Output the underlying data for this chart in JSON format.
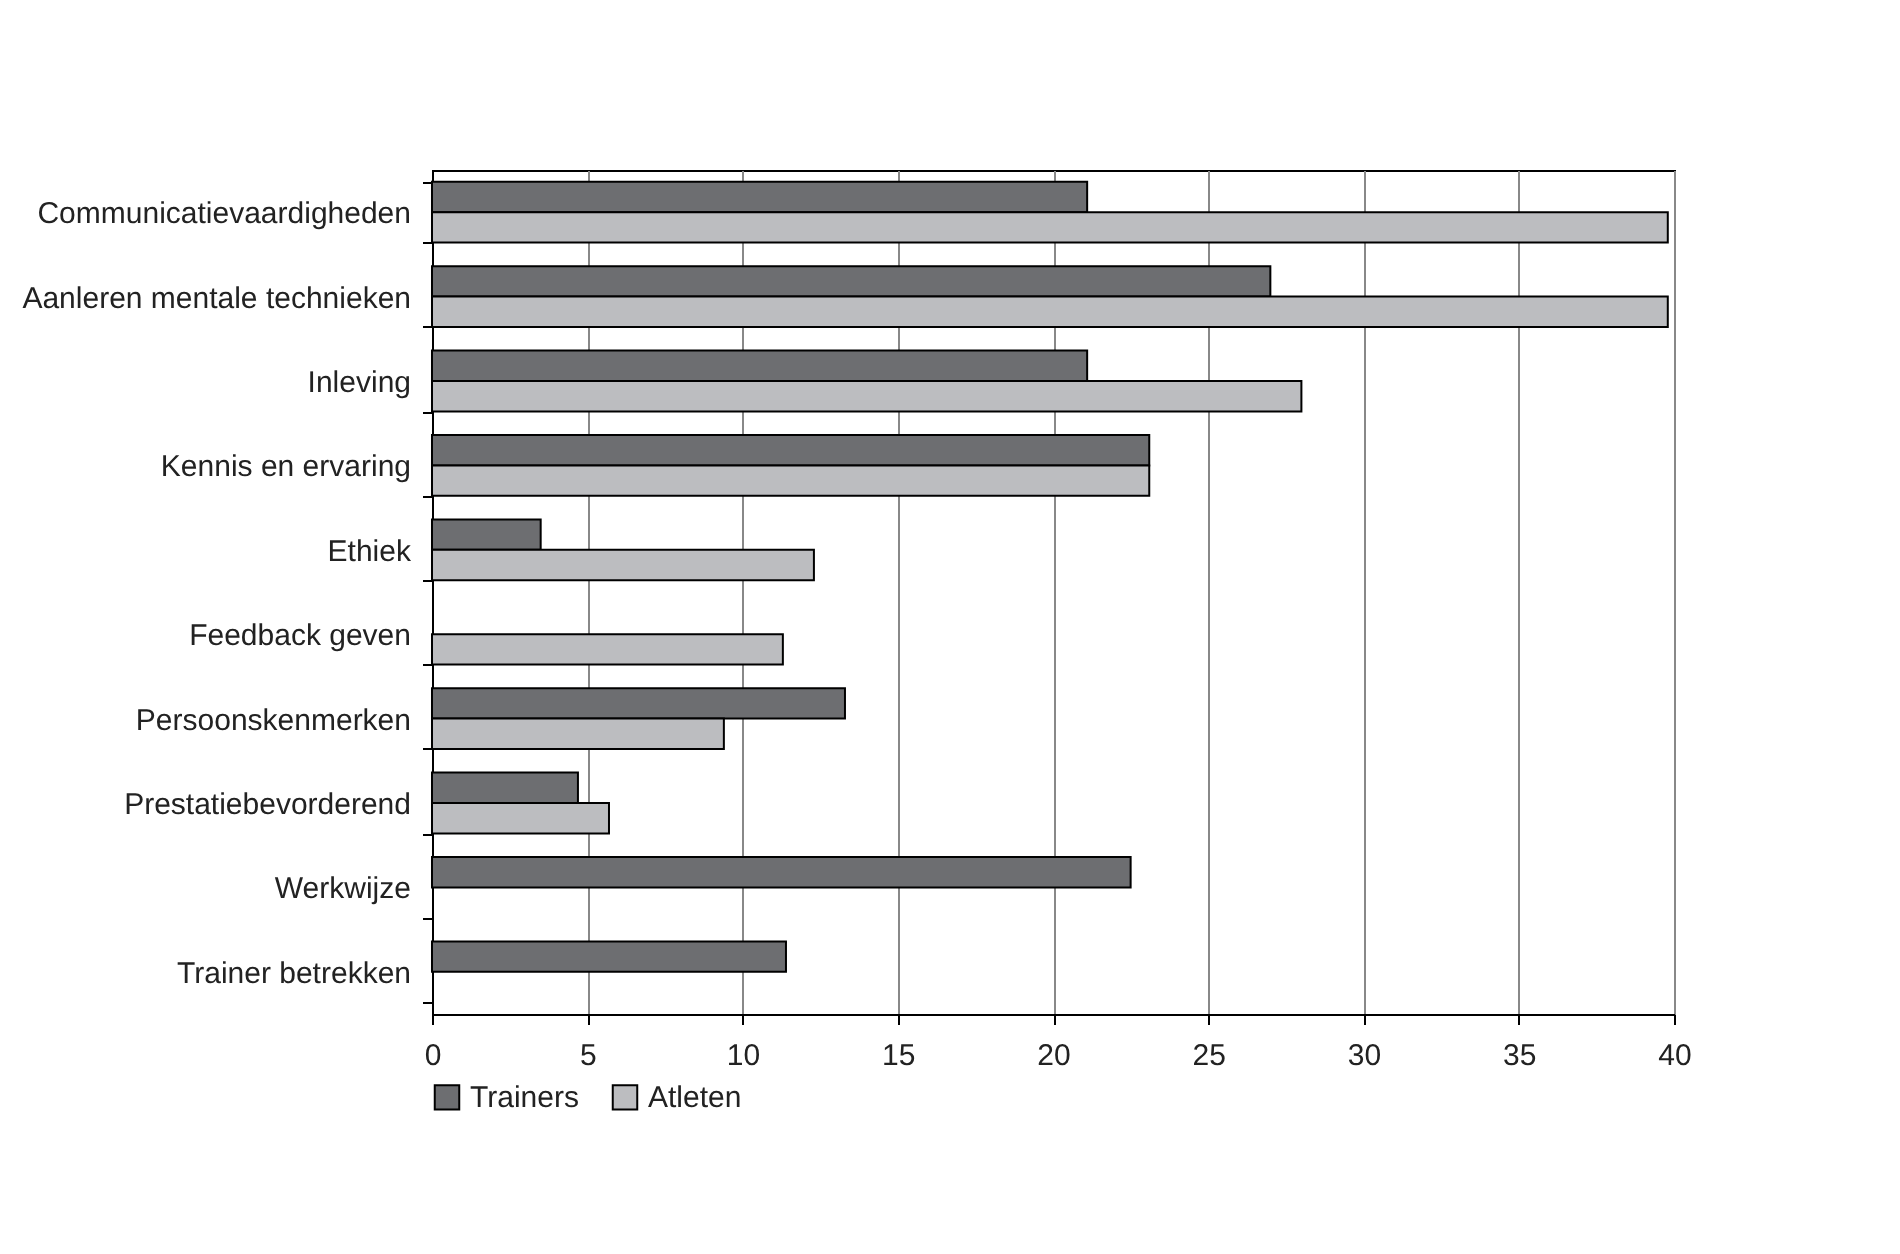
{
  "chart_data": {
    "type": "bar",
    "orientation": "horizontal",
    "categories": [
      "Communicatievaardigheden",
      "Aanleren mentale technieken",
      "Inleving",
      "Kennis en ervaring",
      "Ethiek",
      "Feedback geven",
      "Persoonskenmerken",
      "Prestatiebevorderend",
      "Werkwijze",
      "Trainer betrekken"
    ],
    "series": [
      {
        "name": "Trainers",
        "color": "#6d6e71",
        "values": [
          21.1,
          27.0,
          21.1,
          23.1,
          3.5,
          null,
          13.3,
          4.7,
          22.5,
          11.4
        ]
      },
      {
        "name": "Atleten",
        "color": "#bcbdc0",
        "values": [
          39.8,
          39.8,
          28.0,
          23.1,
          12.3,
          11.3,
          9.4,
          5.7,
          null,
          null
        ]
      }
    ],
    "xlim": [
      0,
      40
    ],
    "xticks": [
      0,
      5,
      10,
      15,
      20,
      25,
      30,
      35,
      40
    ],
    "grid": "x",
    "legend": "bottom"
  }
}
